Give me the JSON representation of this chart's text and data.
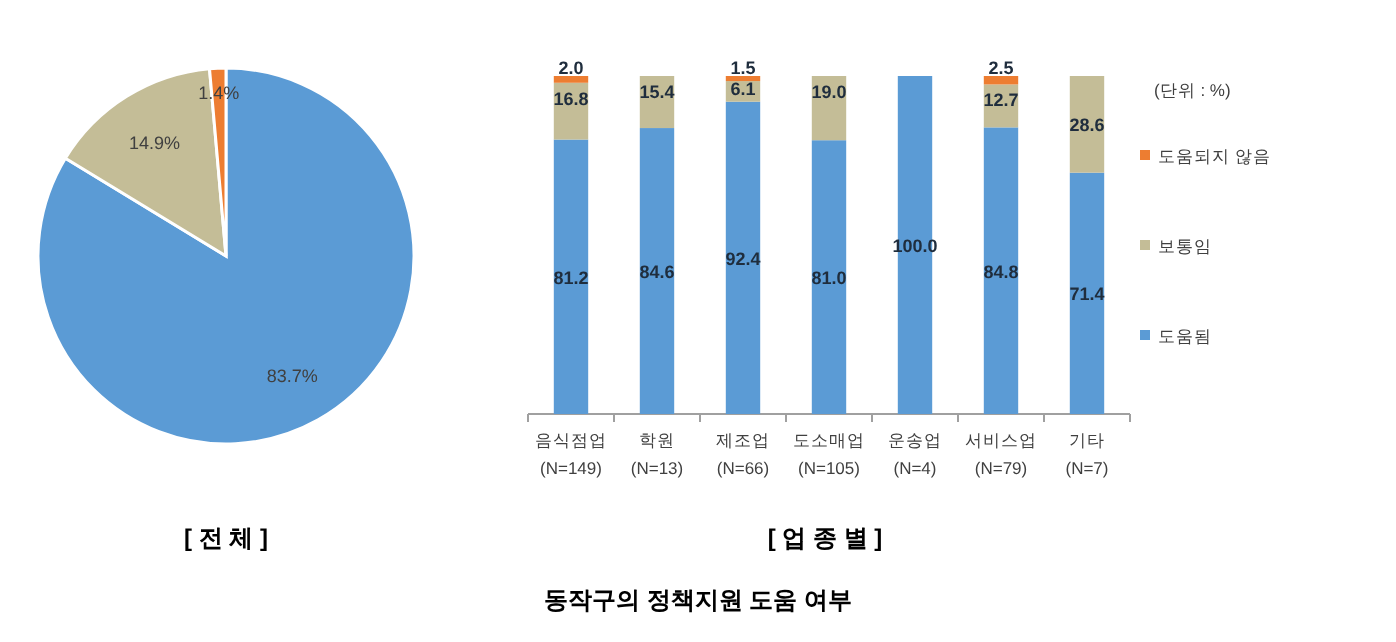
{
  "chart_data": [
    {
      "type": "pie",
      "categories": [
        null,
        null,
        null
      ],
      "values": [
        83.7,
        14.9,
        1.4
      ],
      "colors": [
        "#5b9bd5",
        "#c4bd97",
        "#ed7d31"
      ],
      "value_labels": [
        "83.7%",
        "14.9%",
        "1.4%"
      ],
      "xlabel": "[ 전   체 ]",
      "annotations": [
        "동작구의 정책지원 도움 여부"
      ]
    },
    {
      "type": "bar",
      "stacked": true,
      "categories": [
        "음식점업\n(N=149)",
        "학원\n(N=13)",
        "제조업\n(N=66)",
        "도소매업\n(N=105)",
        "운송업\n(N=4)",
        "서비스업\n(N=79)",
        "기타\n(N=7)"
      ],
      "ylim": [
        0,
        100
      ],
      "tick_labels": "x",
      "legend": "right",
      "xlabel": "[ 업 종 별 ]",
      "annotations": [
        "(단위 : %)"
      ],
      "series": [
        {
          "name": "도움됨",
          "color": "#5b9bd5",
          "values": [
            81.2,
            84.6,
            92.4,
            81.0,
            100.0,
            84.8,
            71.4
          ],
          "value_labels": [
            "81.2",
            "84.6",
            "92.4",
            "81.0",
            "100.0",
            "84.8",
            "71.4"
          ]
        },
        {
          "name": "보통임",
          "color": "#c4bd97",
          "values": [
            16.8,
            15.4,
            6.1,
            19.0,
            null,
            12.7,
            28.6
          ],
          "value_labels": [
            "16.8",
            "15.4",
            "6.1",
            "19.0",
            null,
            "12.7",
            "28.6"
          ]
        },
        {
          "name": "도움되지 않음",
          "color": "#ed7d31",
          "values": [
            2.0,
            null,
            1.5,
            null,
            null,
            2.5,
            null
          ],
          "value_labels": [
            "2.0",
            null,
            "1.5",
            null,
            null,
            "2.5",
            null
          ]
        }
      ]
    }
  ]
}
